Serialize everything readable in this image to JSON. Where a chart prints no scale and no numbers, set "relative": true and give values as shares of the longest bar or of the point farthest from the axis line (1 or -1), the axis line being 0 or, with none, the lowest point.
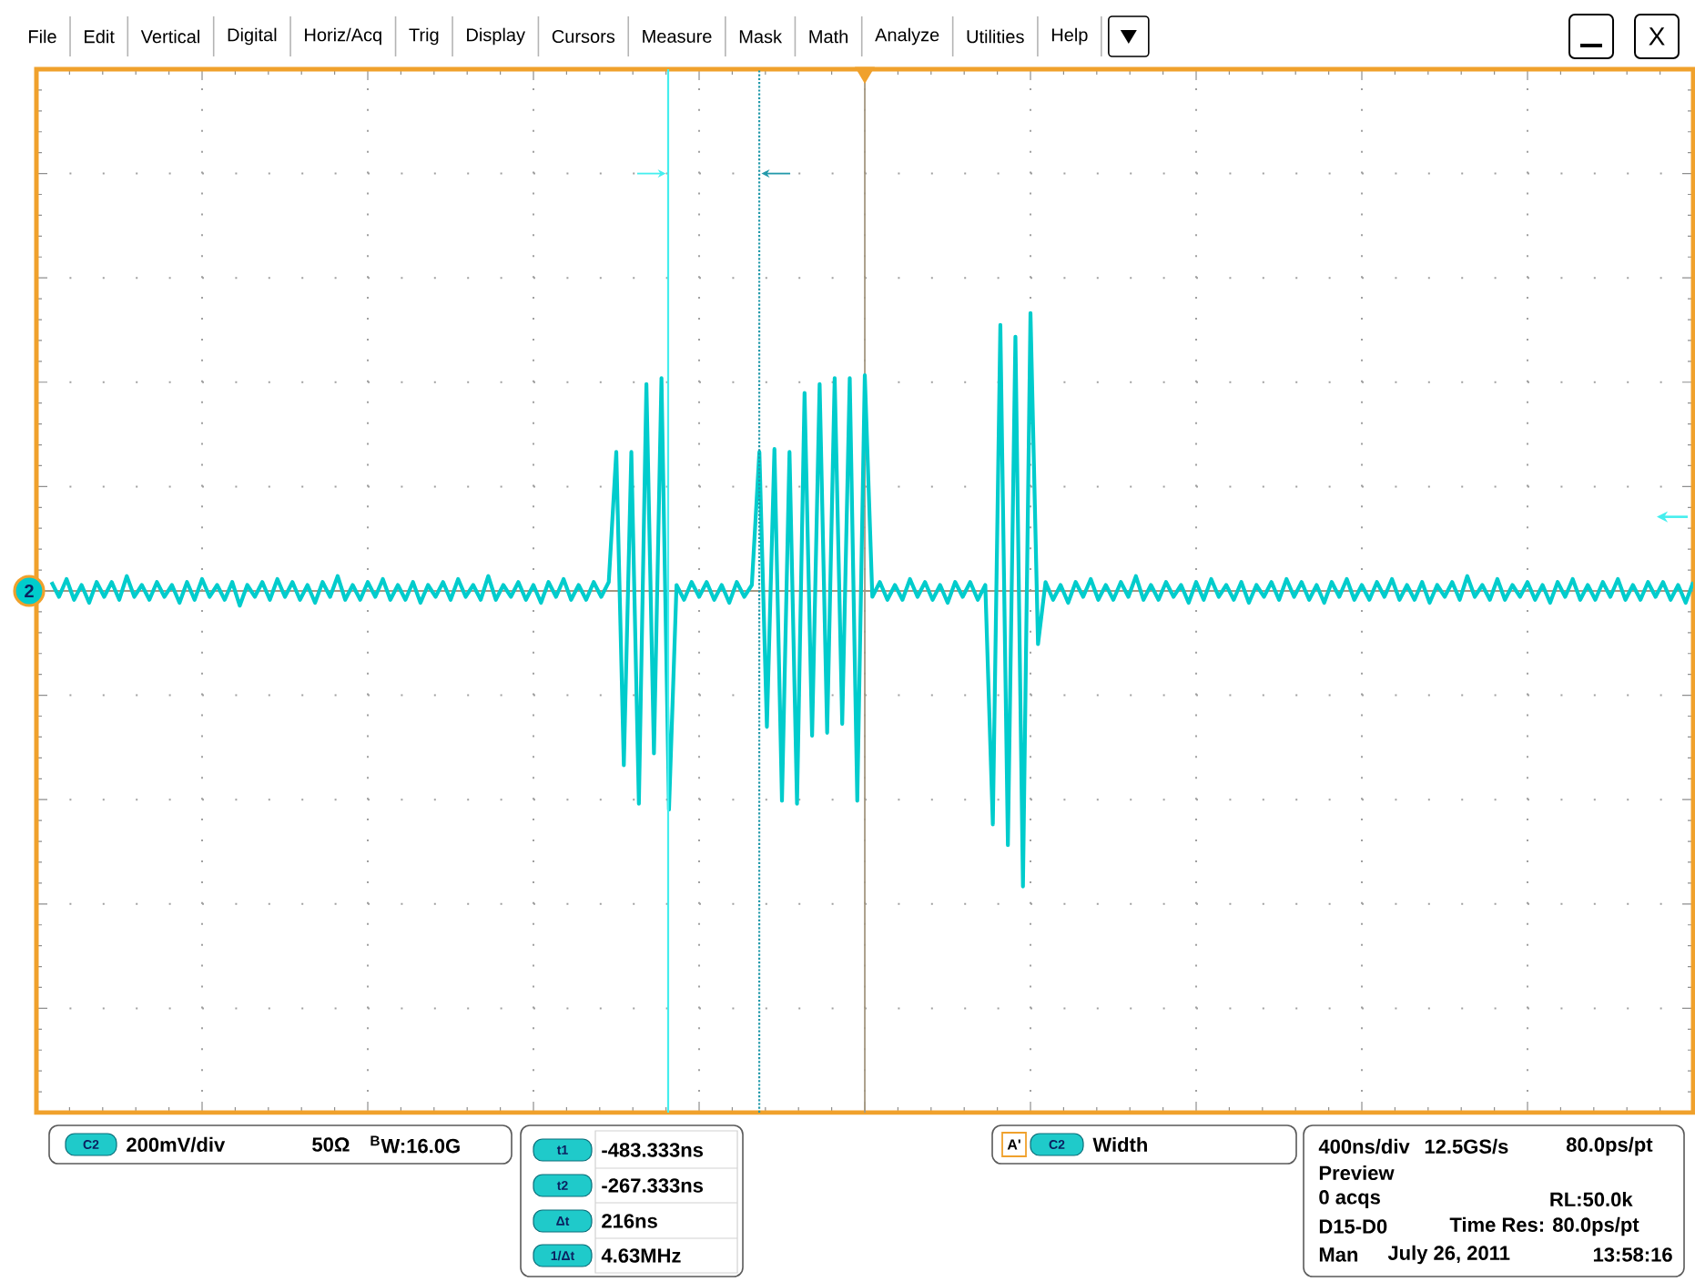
{
  "chart_data": {
    "type": "line",
    "relative": true,
    "color": "#00cccc",
    "categories": [
      null,
      null,
      null,
      null,
      null,
      null,
      null,
      null,
      null,
      null,
      null,
      null,
      null,
      null,
      null,
      null,
      null,
      null,
      null,
      null,
      null,
      null,
      null,
      null,
      null,
      null,
      null,
      null,
      null,
      null,
      null,
      null,
      null,
      null,
      null,
      null,
      null,
      null,
      null,
      null,
      null,
      null,
      null,
      null,
      null,
      null,
      null,
      null,
      null,
      null,
      null,
      null,
      null,
      null,
      null,
      null,
      null,
      null,
      null,
      null,
      null,
      null,
      null,
      null,
      null,
      null,
      null,
      null,
      null,
      null,
      null,
      null,
      null,
      null,
      null,
      null,
      null,
      null,
      null,
      null,
      null,
      null,
      null,
      null,
      null,
      null,
      null,
      null,
      null,
      null,
      null,
      null,
      null,
      null,
      null,
      null,
      null,
      null,
      null,
      null,
      null,
      null,
      null,
      null,
      null,
      null,
      null,
      null,
      null,
      null,
      null,
      null,
      null,
      null,
      null,
      null,
      null,
      null,
      null,
      null,
      null,
      null,
      null,
      null,
      null,
      null,
      null,
      null,
      null,
      null,
      null,
      null,
      null,
      null,
      null,
      null,
      null,
      null,
      null,
      null,
      null,
      null,
      null,
      null,
      null,
      null,
      null,
      null,
      null,
      null,
      null,
      null,
      null,
      null,
      null,
      null,
      null,
      null,
      null,
      null,
      null,
      null,
      null,
      null,
      null,
      null,
      null,
      null,
      null,
      null,
      null,
      null,
      null,
      null,
      null,
      null,
      null,
      null,
      null,
      null,
      null,
      null,
      null,
      null,
      null,
      null,
      null,
      null,
      null,
      null,
      null,
      null,
      null,
      null,
      null,
      null,
      null,
      null,
      null,
      null,
      null,
      null,
      null,
      null,
      null,
      null,
      null,
      null,
      null,
      null,
      null,
      null,
      null,
      null,
      null,
      null,
      null,
      null,
      null,
      null,
      null
    ],
    "values": [
      null,
      null,
      0.03,
      -0.02,
      0.04,
      -0.03,
      0.02,
      -0.04,
      0.03,
      -0.02,
      0.03,
      -0.03,
      0.05,
      -0.02,
      0.02,
      -0.03,
      0.03,
      -0.02,
      0.02,
      -0.04,
      0.03,
      -0.03,
      0.04,
      -0.02,
      0.02,
      -0.03,
      0.03,
      -0.05,
      0.02,
      -0.02,
      0.03,
      -0.03,
      0.04,
      -0.02,
      0.03,
      -0.03,
      0.02,
      -0.04,
      0.03,
      -0.02,
      0.05,
      -0.03,
      0.02,
      -0.03,
      0.03,
      -0.02,
      0.04,
      -0.03,
      0.02,
      -0.03,
      0.03,
      -0.04,
      0.02,
      -0.02,
      0.03,
      -0.03,
      0.04,
      -0.02,
      0.02,
      -0.03,
      0.05,
      -0.03,
      0.02,
      -0.02,
      0.03,
      -0.03,
      0.02,
      -0.04,
      0.03,
      -0.02,
      0.04,
      -0.03,
      0.02,
      -0.03,
      0.03,
      -0.02,
      0.03,
      0.47,
      -0.59,
      0.47,
      -0.72,
      0.7,
      -0.55,
      0.72,
      -0.74,
      0.02,
      -0.03,
      0.03,
      -0.02,
      0.03,
      -0.03,
      0.02,
      -0.04,
      0.03,
      -0.02,
      0.02,
      0.47,
      -0.46,
      0.48,
      -0.71,
      0.47,
      -0.72,
      0.67,
      -0.49,
      0.7,
      -0.48,
      0.72,
      -0.45,
      0.72,
      -0.71,
      0.73,
      -0.02,
      0.03,
      -0.03,
      0.02,
      -0.03,
      0.04,
      -0.02,
      0.03,
      -0.03,
      0.02,
      -0.04,
      0.03,
      -0.02,
      0.03,
      -0.03,
      0.02,
      -0.79,
      0.9,
      -0.86,
      0.86,
      -1,
      0.94,
      -0.18,
      0.03,
      -0.03,
      0.02,
      -0.04,
      0.03,
      -0.02,
      0.04,
      -0.03,
      0.02,
      -0.03,
      0.03,
      -0.02,
      0.05,
      -0.03,
      0.02,
      -0.03,
      0.03,
      -0.02,
      0.02,
      -0.04,
      0.03,
      -0.03,
      0.04,
      -0.02,
      0.02,
      -0.03,
      0.03,
      -0.04,
      0.02,
      -0.02,
      0.03,
      -0.03,
      0.04,
      -0.02,
      0.03,
      -0.03,
      0.02,
      -0.04,
      0.03,
      -0.02,
      0.04,
      -0.03,
      0.02,
      -0.03,
      0.03,
      -0.02,
      0.04,
      -0.03,
      0.02,
      -0.03,
      0.03,
      -0.04,
      0.02,
      -0.02,
      0.03,
      -0.03,
      0.05,
      -0.02,
      0.02,
      -0.03,
      0.04,
      -0.03,
      0.02,
      -0.02,
      0.03,
      -0.03,
      0.02,
      -0.04,
      0.03,
      -0.02,
      0.04,
      -0.03,
      0.02,
      -0.03,
      0.03,
      -0.02,
      0.04,
      -0.03,
      0.02,
      -0.03,
      0.03,
      -0.02,
      0.03,
      -0.03,
      0.02,
      -0.04,
      0.03
    ],
    "grid": true,
    "annotations": [
      "File",
      "Edit",
      "Vertical",
      "Digital",
      "Horiz/Acq",
      "Trig",
      "Display",
      "Cursors",
      "Measure",
      "Mask",
      "Math",
      "Analyze",
      "Utilities",
      "Help",
      "X",
      "2",
      "C2",
      "200mV/div",
      "50Ω",
      "$^{B}$W:16.0G",
      "t1",
      "-483.333ns",
      "t2",
      "-267.333ns",
      "Δt",
      "216ns",
      "1/Δt",
      "4.63MHz",
      "A'",
      "C2",
      "Width",
      "400ns/div",
      "12.5GS/s",
      "80.0ps/pt",
      "Preview",
      "0 acqs",
      "RL:50.0k",
      "D15-D0",
      "Time Res: 80.0ps/pt",
      "Man",
      "July 26, 2011",
      "13:58:16"
    ]
  }
}
